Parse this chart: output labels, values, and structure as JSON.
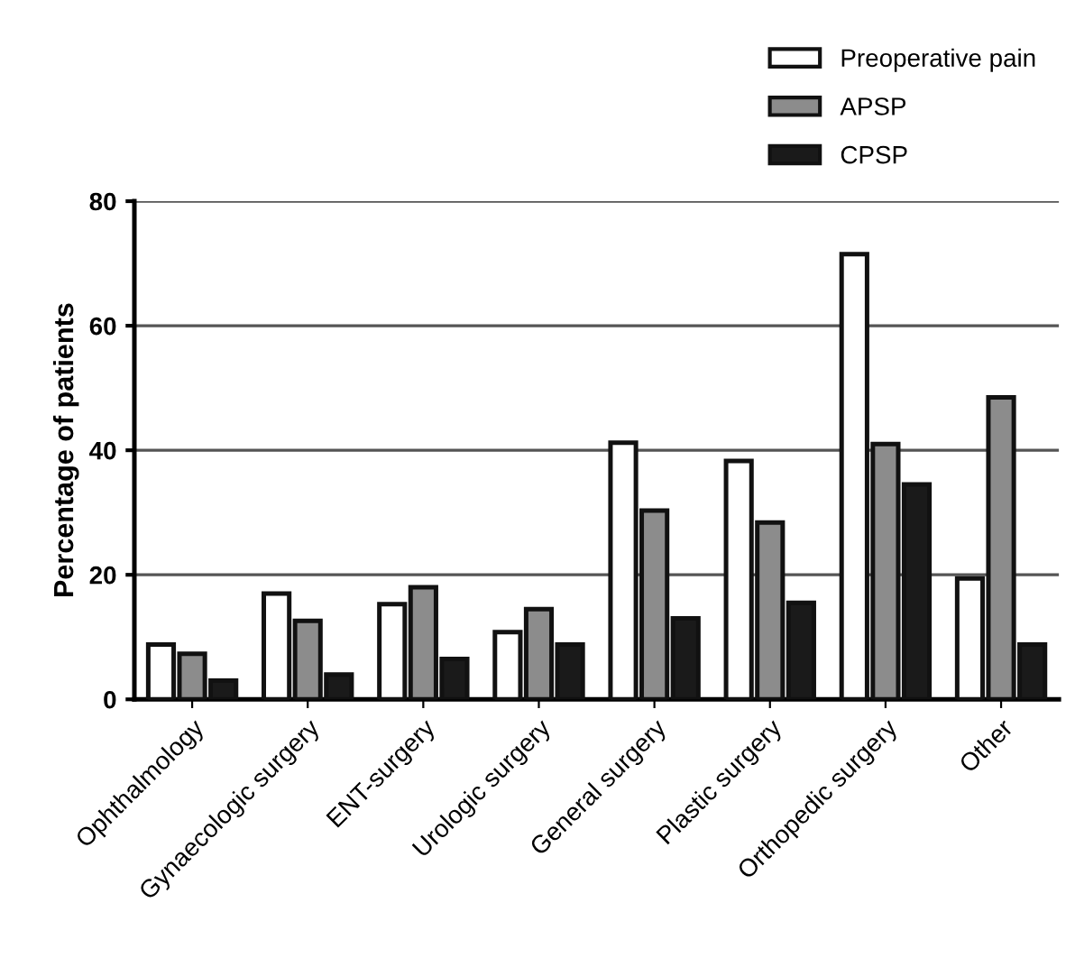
{
  "chart_data": {
    "type": "bar",
    "ylabel": "Percentage of patients",
    "categories": [
      "Ophthalmology",
      "Gynaecologic surgery",
      "ENT-surgery",
      "Urologic surgery",
      "General surgery",
      "Plastic surgery",
      "Orthopedic surgery",
      "Other"
    ],
    "series": [
      {
        "name": "Preoperative pain",
        "color": "#ffffff",
        "values": [
          8.8,
          17,
          15.3,
          10.8,
          41.2,
          38.3,
          71.5,
          19.4
        ]
      },
      {
        "name": "APSP",
        "color": "#8c8c8c",
        "values": [
          7.3,
          12.6,
          18,
          14.5,
          30.3,
          28.4,
          41,
          48.5
        ]
      },
      {
        "name": "CPSP",
        "color": "#1a1a1a",
        "values": [
          3,
          4,
          6.5,
          8.8,
          13,
          15.5,
          34.5,
          8.8
        ]
      }
    ],
    "ylim": [
      0,
      80
    ],
    "yticks": [
      0,
      20,
      40,
      60,
      80
    ],
    "grid": "y",
    "legend": "top right"
  }
}
